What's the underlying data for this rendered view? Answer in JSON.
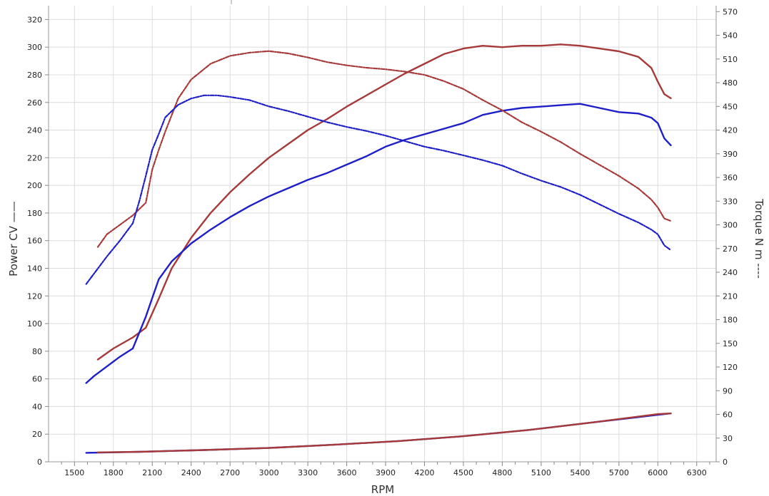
{
  "chart_data": {
    "type": "line",
    "xlabel": "RPM",
    "ylabel": "Power CV ——",
    "y2label": "Torque N m ----",
    "xlim": [
      1300,
      6450
    ],
    "ylim": [
      0,
      330
    ],
    "y2lim": [
      0,
      577.5
    ],
    "x_ticks": [
      1500,
      1800,
      2100,
      2400,
      2700,
      3000,
      3300,
      3600,
      3900,
      4200,
      4500,
      4800,
      5100,
      5400,
      5700,
      6000,
      6300
    ],
    "y_ticks": [
      0,
      20,
      40,
      60,
      80,
      100,
      120,
      140,
      160,
      180,
      200,
      220,
      240,
      260,
      280,
      300,
      320
    ],
    "y2_ticks": [
      0,
      30,
      60,
      90,
      120,
      150,
      180,
      210,
      240,
      270,
      300,
      330,
      360,
      390,
      420,
      450,
      480,
      510,
      540,
      570
    ],
    "grid": true,
    "colors": {
      "red": "#a63a3a",
      "blue": "#1f1fc8",
      "grid": "#dcdcdc"
    },
    "series": [
      {
        "axis": "left",
        "color": "#a63a3a",
        "style": "solid",
        "x": [
          1680,
          1800,
          1950,
          2050,
          2150,
          2250,
          2400,
          2550,
          2700,
          2850,
          3000,
          3150,
          3300,
          3450,
          3600,
          3750,
          3900,
          4050,
          4200,
          4350,
          4500,
          4650,
          4800,
          4950,
          5100,
          5250,
          5400,
          5550,
          5700,
          5850,
          5950,
          6000,
          6050,
          6100
        ],
        "y": [
          74,
          82,
          90,
          97,
          118,
          140,
          162,
          180,
          195,
          208,
          220,
          230,
          240,
          248,
          257,
          265,
          273,
          281,
          288,
          295,
          299,
          301,
          300,
          301,
          301,
          302,
          301,
          299,
          297,
          293,
          285,
          275,
          266,
          263
        ]
      },
      {
        "axis": "left",
        "color": "#1f1fc8",
        "style": "solid",
        "x": [
          1590,
          1650,
          1750,
          1850,
          1950,
          2050,
          2150,
          2250,
          2400,
          2550,
          2700,
          2850,
          3000,
          3150,
          3300,
          3450,
          3600,
          3750,
          3900,
          4050,
          4200,
          4350,
          4500,
          4650,
          4800,
          4950,
          5100,
          5250,
          5400,
          5550,
          5700,
          5850,
          5950,
          6000,
          6050,
          6100
        ],
        "y": [
          57,
          62,
          69,
          76,
          82,
          105,
          132,
          145,
          158,
          168,
          177,
          185,
          192,
          198,
          204,
          209,
          215,
          221,
          228,
          233,
          237,
          241,
          245,
          251,
          254,
          256,
          257,
          258,
          259,
          256,
          253,
          252,
          249,
          245,
          234,
          229
        ]
      },
      {
        "axis": "right",
        "color": "#a63a3a",
        "style": "dashdot",
        "x": [
          1680,
          1750,
          1850,
          1950,
          2050,
          2100,
          2150,
          2200,
          2300,
          2400,
          2550,
          2700,
          2850,
          3000,
          3150,
          3300,
          3450,
          3600,
          3750,
          3900,
          4050,
          4200,
          4350,
          4500,
          4650,
          4800,
          4950,
          5100,
          5250,
          5400,
          5550,
          5700,
          5850,
          5950,
          6000,
          6050,
          6100
        ],
        "y": [
          272,
          288,
          300,
          312,
          328,
          370,
          395,
          418,
          460,
          484,
          504,
          514,
          518,
          520,
          517,
          512,
          506,
          502,
          499,
          497,
          494,
          490,
          482,
          472,
          458,
          445,
          430,
          418,
          405,
          390,
          376,
          362,
          346,
          332,
          322,
          308,
          305
        ]
      },
      {
        "axis": "right",
        "color": "#1f1fc8",
        "style": "dashdot",
        "x": [
          1590,
          1650,
          1750,
          1850,
          1950,
          2000,
          2050,
          2100,
          2150,
          2200,
          2300,
          2400,
          2500,
          2600,
          2700,
          2850,
          3000,
          3150,
          3300,
          3450,
          3600,
          3750,
          3900,
          4050,
          4200,
          4350,
          4500,
          4650,
          4800,
          4950,
          5100,
          5250,
          5400,
          5550,
          5700,
          5850,
          5950,
          6000,
          6050,
          6100
        ],
        "y": [
          225,
          238,
          260,
          280,
          302,
          330,
          362,
          395,
          415,
          436,
          452,
          460,
          464,
          464,
          462,
          458,
          450,
          444,
          437,
          430,
          424,
          419,
          413,
          406,
          399,
          394,
          388,
          382,
          375,
          365,
          356,
          348,
          338,
          326,
          314,
          303,
          294,
          288,
          274,
          268
        ]
      },
      {
        "axis": "left",
        "color": "#1f1fc8",
        "style": "solid",
        "x": [
          1590,
          2000,
          2500,
          3000,
          3500,
          4000,
          4500,
          5000,
          5500,
          6000,
          6100
        ],
        "y": [
          6.5,
          7.2,
          8.5,
          10,
          12.3,
          15,
          18.5,
          23,
          28.5,
          34,
          35
        ]
      },
      {
        "axis": "left",
        "color": "#a63a3a",
        "style": "solid",
        "x": [
          1680,
          2000,
          2500,
          3000,
          3500,
          4000,
          4500,
          5000,
          5500,
          6000,
          6100
        ],
        "y": [
          6.8,
          7.2,
          8.5,
          10,
          12.3,
          15,
          18.5,
          23,
          28.5,
          34.5,
          35
        ]
      }
    ]
  }
}
